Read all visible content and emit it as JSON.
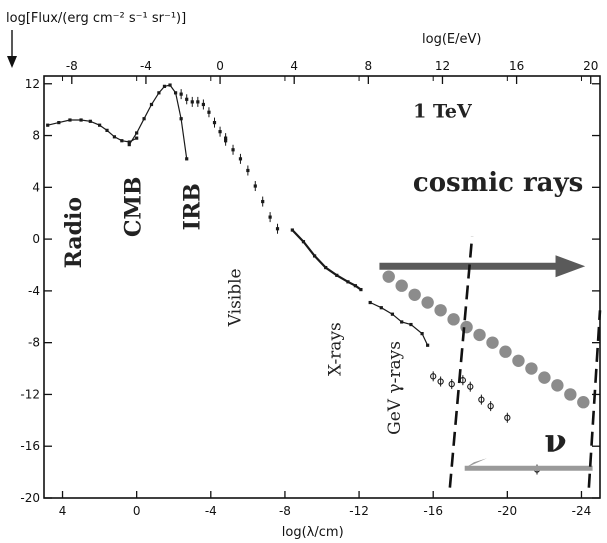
{
  "chart_data": {
    "type": "scatter",
    "title": "",
    "ylabel": "log[Flux/(erg cm⁻² s⁻¹ sr⁻¹)]",
    "xlabel": "log(λ/cm)",
    "x2label": "log(E/eV)",
    "xlim": [
      5,
      -25
    ],
    "x2lim": [
      -9.5,
      20.5
    ],
    "ylim": [
      -20,
      12.6
    ],
    "x_ticks": [
      4,
      0,
      -4,
      -8,
      -12,
      -16,
      -20,
      -24
    ],
    "x2_ticks": [
      -8,
      -4,
      0,
      4,
      8,
      12,
      16,
      20
    ],
    "y_ticks": [
      12,
      8,
      4,
      0,
      -4,
      -8,
      -12,
      -16,
      -20
    ],
    "band_labels": [
      {
        "text": "Radio",
        "x": 3.0,
        "y": 0.5
      },
      {
        "text": "CMB",
        "x": -0.2,
        "y": 2.5
      },
      {
        "text": "IRB",
        "x": -3.4,
        "y": 2.5
      },
      {
        "text": "Visible",
        "x": -5.6,
        "y": -4.5
      },
      {
        "text": "X-rays",
        "x": -11.0,
        "y": -8.5
      },
      {
        "text": "GeV γ-rays",
        "x": -14.2,
        "y": -11.5
      }
    ],
    "energy_marker": {
      "text": "1 TeV",
      "x2": 12,
      "y": 10.0
    },
    "cosmic_rays_label": "cosmic rays",
    "neutrino_label": "ν",
    "series": [
      {
        "style": "radio",
        "points": [
          [
            4.8,
            8.8
          ],
          [
            4.2,
            9.0
          ],
          [
            3.6,
            9.2
          ],
          [
            3.0,
            9.2
          ],
          [
            2.5,
            9.1
          ],
          [
            2.0,
            8.8
          ],
          [
            1.6,
            8.4
          ],
          [
            1.2,
            7.9
          ],
          [
            0.8,
            7.6
          ],
          [
            0.4,
            7.5
          ],
          [
            0.0,
            7.8
          ]
        ]
      },
      {
        "style": "cmb",
        "points": [
          [
            0.4,
            7.3
          ],
          [
            0.0,
            8.2
          ],
          [
            -0.4,
            9.3
          ],
          [
            -0.8,
            10.4
          ],
          [
            -1.2,
            11.3
          ],
          [
            -1.5,
            11.8
          ],
          [
            -1.8,
            11.9
          ],
          [
            -2.1,
            11.3
          ],
          [
            -2.4,
            9.3
          ],
          [
            -2.7,
            6.2
          ]
        ]
      },
      {
        "style": "irb",
        "points": [
          [
            -2.4,
            11.2
          ],
          [
            -2.7,
            10.8
          ],
          [
            -3.0,
            10.6
          ],
          [
            -3.3,
            10.6
          ],
          [
            -3.6,
            10.4
          ],
          [
            -3.9,
            9.8
          ],
          [
            -4.2,
            9.0
          ],
          [
            -4.5,
            8.3
          ],
          [
            -4.8,
            7.8
          ]
        ]
      },
      {
        "style": "visible",
        "points": [
          [
            -4.8,
            7.6
          ],
          [
            -5.2,
            6.9
          ],
          [
            -5.6,
            6.2
          ],
          [
            -6.0,
            5.3
          ],
          [
            -6.4,
            4.1
          ],
          [
            -6.8,
            2.9
          ],
          [
            -7.2,
            1.7
          ],
          [
            -7.6,
            0.8
          ]
        ]
      },
      {
        "style": "xray",
        "points": [
          [
            -8.4,
            0.7
          ],
          [
            -9.0,
            -0.2
          ],
          [
            -9.6,
            -1.3
          ],
          [
            -10.2,
            -2.2
          ],
          [
            -10.8,
            -2.8
          ],
          [
            -11.4,
            -3.3
          ],
          [
            -11.8,
            -3.6
          ],
          [
            -12.1,
            -3.9
          ]
        ]
      },
      {
        "style": "gamma",
        "points": [
          [
            -12.6,
            -4.9
          ],
          [
            -13.2,
            -5.3
          ],
          [
            -13.8,
            -5.8
          ],
          [
            -14.3,
            -6.4
          ],
          [
            -14.8,
            -6.6
          ],
          [
            -15.4,
            -7.3
          ],
          [
            -15.7,
            -8.2
          ]
        ]
      },
      {
        "style": "tev",
        "points": [
          [
            -16.0,
            -10.6
          ],
          [
            -16.4,
            -11.0
          ],
          [
            -17.0,
            -11.2
          ],
          [
            -17.6,
            -10.9
          ],
          [
            -18.0,
            -11.4
          ],
          [
            -18.6,
            -12.4
          ],
          [
            -19.1,
            -12.9
          ],
          [
            -20.0,
            -13.8
          ],
          [
            -21.6,
            -17.8
          ]
        ]
      },
      {
        "style": "cosmic_rays",
        "points": [
          [
            -13.6,
            -2.9
          ],
          [
            -14.3,
            -3.6
          ],
          [
            -15.0,
            -4.3
          ],
          [
            -15.7,
            -4.9
          ],
          [
            -16.4,
            -5.5
          ],
          [
            -17.1,
            -6.2
          ],
          [
            -17.8,
            -6.8
          ],
          [
            -18.5,
            -7.4
          ],
          [
            -19.2,
            -8.0
          ],
          [
            -19.9,
            -8.7
          ],
          [
            -20.6,
            -9.4
          ],
          [
            -21.3,
            -10.0
          ],
          [
            -22.0,
            -10.7
          ],
          [
            -22.7,
            -11.3
          ],
          [
            -23.4,
            -12.0
          ],
          [
            -24.1,
            -12.6
          ]
        ]
      }
    ],
    "grid": false
  },
  "colors": {
    "axis": "#111111",
    "data": "#1a1a1a",
    "cosmic_dots": "#8c8c8c",
    "cosmic_arrow": "#5a5a5a",
    "neutrino_arrow": "#9a9a9a",
    "labels": "#222222",
    "cosmic_text": "#707070"
  }
}
